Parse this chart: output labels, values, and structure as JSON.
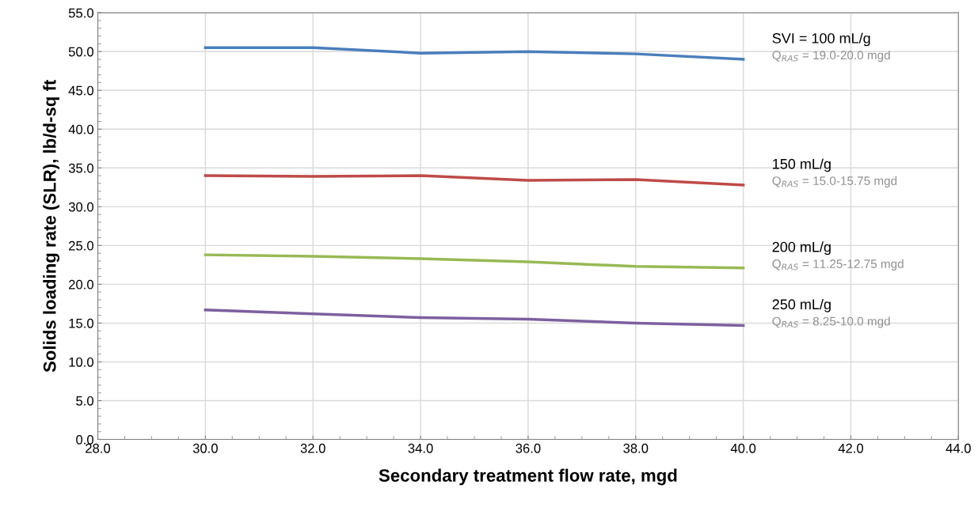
{
  "chart_data": {
    "type": "line",
    "xlabel": "Secondary treatment flow rate, mgd",
    "ylabel": "Solids loading rate (SLR), lb/d-sq ft",
    "x": [
      30,
      32,
      34,
      36,
      38,
      40
    ],
    "series": [
      {
        "name": "SVI = 100 mL/g",
        "color": "#4a7ebb",
        "values": [
          50.5,
          50.5,
          49.8,
          50.0,
          49.7,
          49.0
        ]
      },
      {
        "name": "150 mL/g",
        "color": "#be4b48",
        "values": [
          34.0,
          33.9,
          34.0,
          33.4,
          33.5,
          32.8
        ]
      },
      {
        "name": "200 mL/g",
        "color": "#98b954",
        "values": [
          23.8,
          23.6,
          23.3,
          22.9,
          22.3,
          22.1
        ]
      },
      {
        "name": "250 mL/g",
        "color": "#7d60a0",
        "values": [
          16.7,
          16.2,
          15.7,
          15.5,
          15.0,
          14.7
        ]
      }
    ],
    "annotations": [
      "Q$_{RAS}$ = 19.0-20.0 mgd",
      "Q$_{RAS}$ = 15.0-15.75 mgd",
      "Q$_{RAS}$ = 11.25-12.75 mgd",
      "Q$_{RAS}$ = 8.25-10.0 mgd"
    ],
    "xlim": [
      28,
      44
    ],
    "xticks": [
      {
        "value": 28,
        "label": "28.0"
      },
      {
        "value": 30,
        "label": "30.0"
      },
      {
        "value": 32,
        "label": "32.0"
      },
      {
        "value": 34,
        "label": "34.0"
      },
      {
        "value": 36,
        "label": "36.0"
      },
      {
        "value": 38,
        "label": "38.0"
      },
      {
        "value": 40,
        "label": "40.0"
      },
      {
        "value": 42,
        "label": "42.0"
      },
      {
        "value": 44,
        "label": "44.0"
      }
    ],
    "ylim": [
      0,
      55
    ],
    "yticks": [
      {
        "value": 0,
        "label": "0.0"
      },
      {
        "value": 5,
        "label": "5.0"
      },
      {
        "value": 10,
        "label": "10.0"
      },
      {
        "value": 15,
        "label": "15.0"
      },
      {
        "value": 20,
        "label": "20.0"
      },
      {
        "value": 25,
        "label": "25.0"
      },
      {
        "value": 30,
        "label": "30.0"
      },
      {
        "value": 35,
        "label": "35.0"
      },
      {
        "value": 40,
        "label": "40.0"
      },
      {
        "value": 45,
        "label": "45.0"
      },
      {
        "value": 50,
        "label": "50.0"
      },
      {
        "value": 55,
        "label": "55.0"
      }
    ],
    "grid": true,
    "legend": false,
    "marker": "none",
    "line_style": "solid"
  }
}
